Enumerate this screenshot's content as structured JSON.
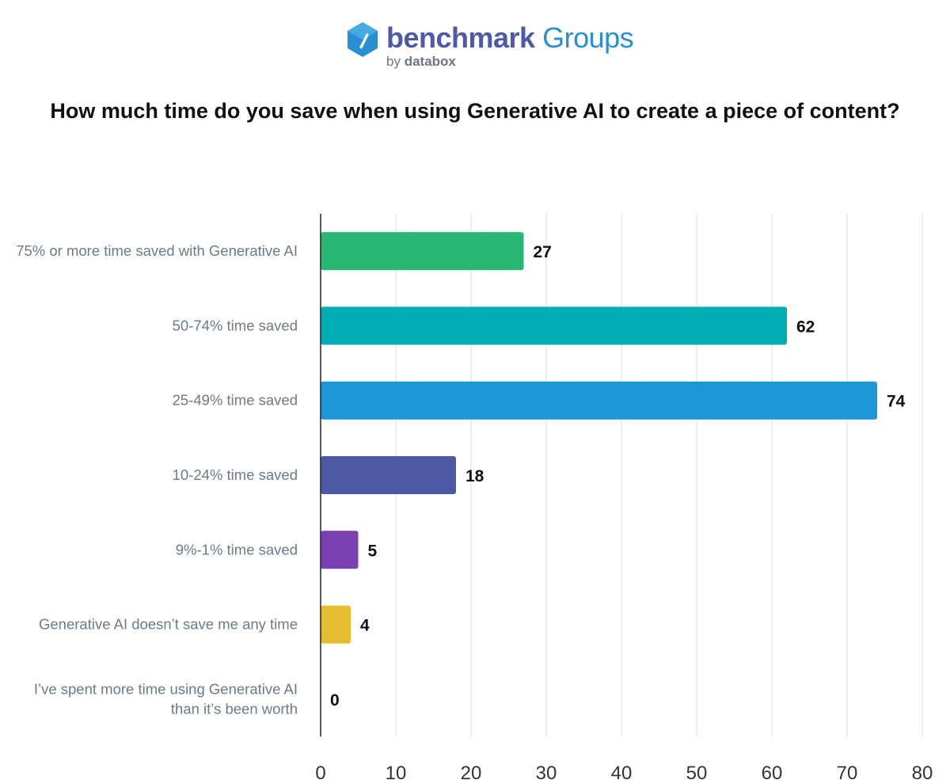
{
  "logo": {
    "brand_main": "benchmark",
    "brand_sub": "Groups",
    "byline_prefix": "by",
    "byline_name": "databox"
  },
  "chart_data": {
    "type": "bar",
    "orientation": "horizontal",
    "title": "How much time do you save when using Generative AI to create a piece of content?",
    "categories": [
      "75% or more time saved with Generative AI",
      "50-74% time saved",
      "25-49% time saved",
      "10-24% time saved",
      "9%-1% time saved",
      "Generative AI doesn’t save me any time",
      "I’ve spent more time using Generative AI than it’s been worth"
    ],
    "values": [
      27,
      62,
      74,
      18,
      5,
      4,
      0
    ],
    "colors": [
      "#2ab673",
      "#00adb5",
      "#1c97d5",
      "#4e59a5",
      "#7a3fb0",
      "#e6bd31",
      "#999999"
    ],
    "xlabel": "",
    "ylabel": "",
    "xlim": [
      0,
      80
    ],
    "xticks": [
      0,
      10,
      20,
      30,
      40,
      50,
      60,
      70,
      80
    ],
    "grid": true,
    "legend": "none"
  }
}
